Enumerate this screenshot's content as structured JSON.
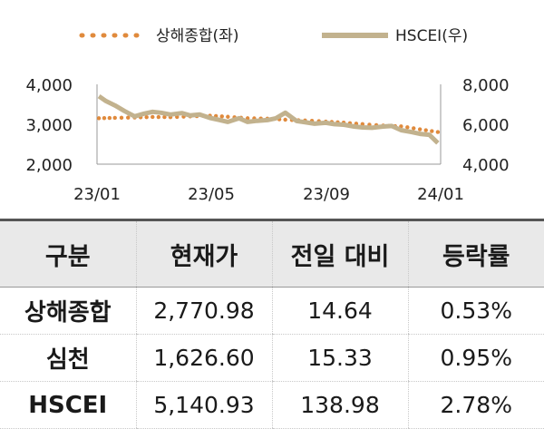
{
  "chart_data": {
    "type": "line",
    "legend": [
      {
        "name": "상해종합(좌)",
        "style": "dotted",
        "color": "#e08a3c"
      },
      {
        "name": "HSCEI(우)",
        "style": "solid",
        "color": "#c2b28e"
      }
    ],
    "legend_position": "top",
    "x_ticks": [
      "23/01",
      "23/05",
      "23/09",
      "24/01"
    ],
    "y_left_ticks": [
      "4,000",
      "3,000",
      "2,000"
    ],
    "y_right_ticks": [
      "8,000",
      "6,000",
      "4,000"
    ],
    "y_left_range": [
      2000,
      4000
    ],
    "y_right_range": [
      4000,
      8000
    ],
    "grid": false,
    "series": [
      {
        "name": "상해종합(좌)",
        "axis": "left",
        "x": [
          "2023-01-03",
          "2023-01-20",
          "2023-02-10",
          "2023-03-01",
          "2023-03-20",
          "2023-04-10",
          "2023-05-01",
          "2023-05-20",
          "2023-06-10",
          "2023-07-01",
          "2023-07-20",
          "2023-08-10",
          "2023-09-01",
          "2023-09-20",
          "2023-10-10",
          "2023-11-01",
          "2023-11-20",
          "2023-12-10",
          "2023-12-29"
        ],
        "values": [
          3250,
          3260,
          3270,
          3285,
          3280,
          3300,
          3320,
          3290,
          3250,
          3240,
          3210,
          3190,
          3160,
          3130,
          3090,
          3050,
          3030,
          2950,
          2875
        ]
      },
      {
        "name": "HSCEI(우)",
        "axis": "right",
        "x": [
          "2023-01-03",
          "2023-01-10",
          "2023-01-20",
          "2023-01-30",
          "2023-02-10",
          "2023-02-20",
          "2023-03-01",
          "2023-03-10",
          "2023-03-20",
          "2023-04-01",
          "2023-04-10",
          "2023-04-20",
          "2023-05-01",
          "2023-05-10",
          "2023-05-20",
          "2023-06-01",
          "2023-06-10",
          "2023-06-20",
          "2023-07-01",
          "2023-07-10",
          "2023-07-20",
          "2023-08-01",
          "2023-08-10",
          "2023-08-20",
          "2023-09-01",
          "2023-09-10",
          "2023-09-20",
          "2023-10-01",
          "2023-10-10",
          "2023-10-20",
          "2023-11-01",
          "2023-11-10",
          "2023-11-20",
          "2023-12-01",
          "2023-12-10",
          "2023-12-20",
          "2023-12-29"
        ],
        "values": [
          7700,
          7450,
          7200,
          6900,
          6600,
          6750,
          6850,
          6800,
          6700,
          6780,
          6650,
          6700,
          6520,
          6420,
          6300,
          6500,
          6300,
          6360,
          6400,
          6500,
          6800,
          6350,
          6280,
          6200,
          6250,
          6180,
          6150,
          6050,
          6000,
          5980,
          6050,
          6080,
          5850,
          5750,
          5650,
          5600,
          5150
        ]
      }
    ]
  },
  "table": {
    "headers": [
      "구분",
      "현재가",
      "전일 대비",
      "등락률"
    ],
    "rows": [
      [
        "상해종합",
        "2,770.98",
        "14.64",
        "0.53%"
      ],
      [
        "심천",
        "1,626.60",
        "15.33",
        "0.95%"
      ],
      [
        "HSCEI",
        "5,140.93",
        "138.98",
        "2.78%"
      ]
    ]
  }
}
